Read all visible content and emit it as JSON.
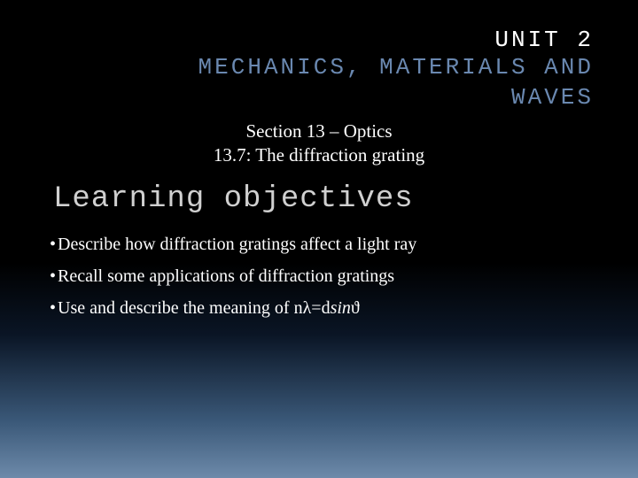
{
  "slide": {
    "unit_label": "UNIT 2",
    "unit_title_line1": "MECHANICS, MATERIALS AND",
    "unit_title_line2": "WAVES",
    "section": "Section 13 – Optics",
    "subsection": "13.7: The diffraction grating",
    "heading": "Learning objectives",
    "bullets": [
      "Describe how diffraction gratings affect a light ray",
      "Recall some applications of diffraction gratings",
      "Use and describe the meaning of nλ=d"
    ],
    "bullet3_italic": "sin",
    "bullet3_tail": "ϑ"
  },
  "style": {
    "background_gradient_stops": [
      "#000000",
      "#000000",
      "#0a1525",
      "#3a5878",
      "#6d8aaa"
    ],
    "unit_label_color": "#ffffff",
    "unit_title_color": "#6a88b0",
    "heading_color": "#d0d0d0",
    "body_text_color": "#ffffff",
    "unit_fontsize": 26,
    "section_fontsize": 21,
    "heading_fontsize": 34,
    "bullet_fontsize": 20,
    "unit_font": "Courier New",
    "body_font": "Georgia"
  }
}
